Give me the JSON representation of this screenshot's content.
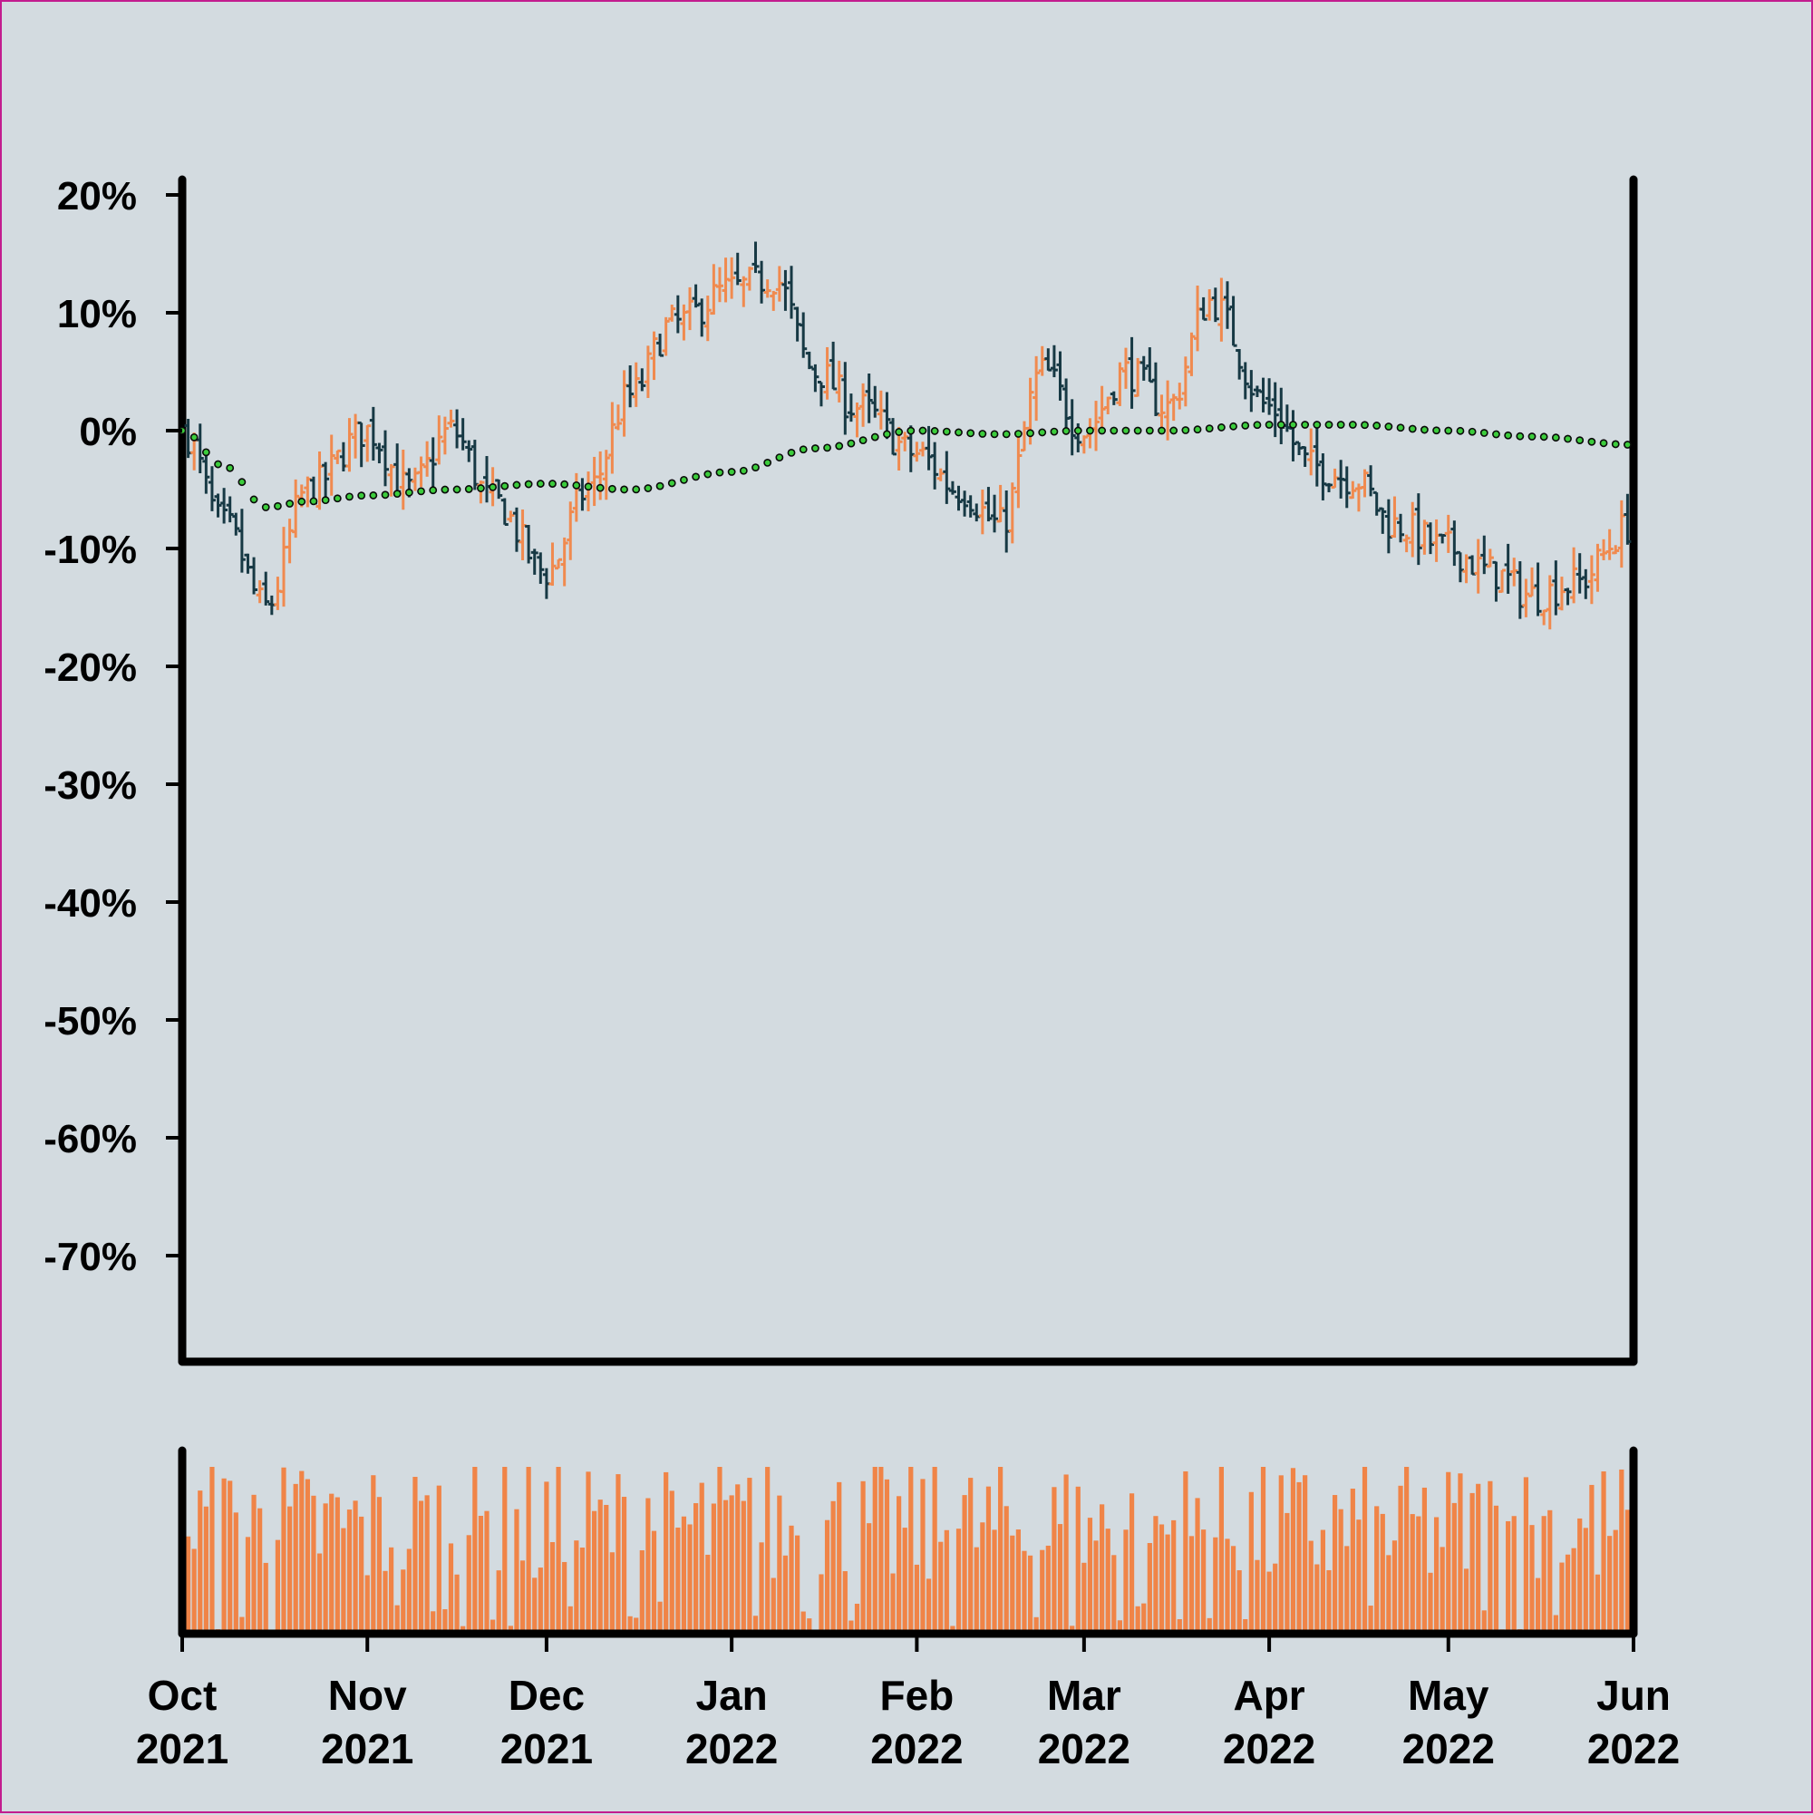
{
  "chart_data": {
    "type": "ohlc",
    "title": "",
    "xlabel": "",
    "ylabel": "",
    "x_range": [
      "2021-10-01",
      "2022-06-01"
    ],
    "y_range": [
      -0.79,
      0.21
    ],
    "y_format": "percent",
    "y_ticks": [
      0.2,
      0.1,
      0.0,
      -0.1,
      -0.2,
      -0.3,
      -0.4,
      -0.5,
      -0.6,
      -0.7
    ],
    "y_tick_labels": [
      "20%",
      "10%",
      "0%",
      "-10%",
      "-20%",
      "-30%",
      "-40%",
      "-50%",
      "-60%",
      "-70%"
    ],
    "x_ticks": [
      "2021-10-01",
      "2021-11-01",
      "2021-12-01",
      "2022-01-01",
      "2022-02-01",
      "2022-03-01",
      "2022-04-01",
      "2022-05-01",
      "2022-06-01"
    ],
    "x_tick_labels": [
      {
        "month": "Oct",
        "year": "2021"
      },
      {
        "month": "Nov",
        "year": "2021"
      },
      {
        "month": "Dec",
        "year": "2021"
      },
      {
        "month": "Jan",
        "year": "2022"
      },
      {
        "month": "Feb",
        "year": "2022"
      },
      {
        "month": "Mar",
        "year": "2022"
      },
      {
        "month": "Apr",
        "year": "2022"
      },
      {
        "month": "May",
        "year": "2022"
      },
      {
        "month": "Jun",
        "year": "2022"
      }
    ],
    "price_series": {
      "name": "",
      "dates": [
        "2021-10-01",
        "2021-10-08",
        "2021-10-15",
        "2021-10-22",
        "2021-11-01",
        "2021-11-08",
        "2021-11-15",
        "2021-11-22",
        "2021-12-01",
        "2021-12-08",
        "2021-12-15",
        "2021-12-22",
        "2022-01-01",
        "2022-01-08",
        "2022-01-15",
        "2022-01-22",
        "2022-02-01",
        "2022-02-08",
        "2022-02-15",
        "2022-02-22",
        "2022-03-01",
        "2022-03-08",
        "2022-03-15",
        "2022-03-22",
        "2022-04-01",
        "2022-04-08",
        "2022-04-15",
        "2022-04-22",
        "2022-05-01",
        "2022-05-08",
        "2022-05-15",
        "2022-05-22",
        "2022-06-01"
      ],
      "close": [
        0.0,
        -0.08,
        -0.15,
        -0.05,
        0.0,
        -0.05,
        0.0,
        -0.06,
        -0.12,
        -0.05,
        0.03,
        0.09,
        0.12,
        0.13,
        0.05,
        0.02,
        -0.02,
        -0.05,
        -0.08,
        0.05,
        0.0,
        0.05,
        0.02,
        0.11,
        0.02,
        -0.03,
        -0.04,
        -0.08,
        -0.1,
        -0.12,
        -0.14,
        -0.13,
        -0.08
      ]
    },
    "moving_average": {
      "name": "",
      "dates": [
        "2021-10-01",
        "2021-10-08",
        "2021-10-15",
        "2021-10-22",
        "2021-11-01",
        "2021-11-15",
        "2021-12-01",
        "2021-12-15",
        "2022-01-01",
        "2022-01-15",
        "2022-02-01",
        "2022-02-15",
        "2022-03-01",
        "2022-03-15",
        "2022-04-01",
        "2022-04-15",
        "2022-05-01",
        "2022-05-15",
        "2022-06-01"
      ],
      "values": [
        0.0,
        -0.03,
        -0.065,
        -0.06,
        -0.055,
        -0.05,
        -0.045,
        -0.05,
        -0.035,
        -0.015,
        0.0,
        -0.003,
        0.0,
        0.0,
        0.005,
        0.005,
        0.0,
        -0.005,
        -0.012
      ]
    },
    "volume": {
      "name": "",
      "note_units": "relative"
    },
    "colors": {
      "up": "#f08a4f",
      "down": "#173944",
      "ma_fill": "#3ccc3c",
      "ma_stroke": "#0a0a0a",
      "volume": "#f08447",
      "axis": "#000000",
      "background": "#d3dbe0"
    },
    "grid": false,
    "legend": "none"
  }
}
